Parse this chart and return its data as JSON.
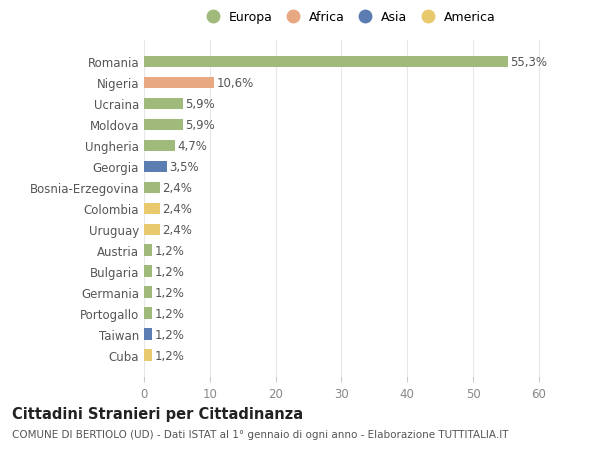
{
  "countries": [
    "Romania",
    "Nigeria",
    "Ucraina",
    "Moldova",
    "Ungheria",
    "Georgia",
    "Bosnia-Erzegovina",
    "Colombia",
    "Uruguay",
    "Austria",
    "Bulgaria",
    "Germania",
    "Portogallo",
    "Taiwan",
    "Cuba"
  ],
  "values": [
    55.3,
    10.6,
    5.9,
    5.9,
    4.7,
    3.5,
    2.4,
    2.4,
    2.4,
    1.2,
    1.2,
    1.2,
    1.2,
    1.2,
    1.2
  ],
  "labels": [
    "55,3%",
    "10,6%",
    "5,9%",
    "5,9%",
    "4,7%",
    "3,5%",
    "2,4%",
    "2,4%",
    "2,4%",
    "1,2%",
    "1,2%",
    "1,2%",
    "1,2%",
    "1,2%",
    "1,2%"
  ],
  "continents": [
    "Europa",
    "Africa",
    "Europa",
    "Europa",
    "Europa",
    "Asia",
    "Europa",
    "America",
    "America",
    "Europa",
    "Europa",
    "Europa",
    "Europa",
    "Asia",
    "America"
  ],
  "colors": {
    "Europa": "#9fba7a",
    "Africa": "#e8a882",
    "Asia": "#5b7db1",
    "America": "#e8c96e"
  },
  "legend_order": [
    "Europa",
    "Africa",
    "Asia",
    "America"
  ],
  "xlim": [
    0,
    62
  ],
  "xticks": [
    0,
    10,
    20,
    30,
    40,
    50,
    60
  ],
  "title": "Cittadini Stranieri per Cittadinanza",
  "subtitle": "COMUNE DI BERTIOLO (UD) - Dati ISTAT al 1° gennaio di ogni anno - Elaborazione TUTTITALIA.IT",
  "bg_color": "#ffffff",
  "grid_color": "#e8e8e8",
  "bar_height": 0.55,
  "label_fontsize": 8.5,
  "value_fontsize": 8.5,
  "title_fontsize": 10.5,
  "subtitle_fontsize": 7.5,
  "legend_fontsize": 9
}
